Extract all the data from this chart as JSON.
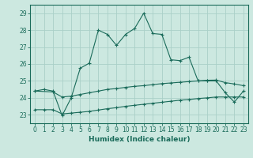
{
  "xlabel": "Humidex (Indice chaleur)",
  "background_color": "#cce8e0",
  "grid_color": "#aad0c8",
  "line_color": "#1a6b5a",
  "xlim": [
    -0.5,
    23.5
  ],
  "ylim": [
    22.5,
    29.5
  ],
  "x_ticks": [
    0,
    1,
    2,
    3,
    4,
    5,
    6,
    7,
    8,
    9,
    10,
    11,
    12,
    13,
    14,
    15,
    16,
    17,
    18,
    19,
    20,
    21,
    22,
    23
  ],
  "y_ticks": [
    23,
    24,
    25,
    26,
    27,
    28,
    29
  ],
  "series1_x": [
    0,
    1,
    2,
    3,
    4,
    5,
    6,
    7,
    8,
    9,
    10,
    11,
    12,
    13,
    14,
    15,
    16,
    17,
    18,
    19,
    20,
    21,
    22,
    23
  ],
  "series1_y": [
    24.4,
    24.5,
    24.4,
    22.95,
    24.0,
    25.75,
    26.05,
    28.0,
    27.75,
    27.1,
    27.75,
    28.1,
    29.0,
    27.8,
    27.75,
    26.25,
    26.2,
    26.4,
    25.0,
    25.0,
    25.0,
    24.3,
    23.75,
    24.4
  ],
  "series2_x": [
    0,
    2,
    3,
    4,
    5,
    6,
    7,
    8,
    9,
    10,
    11,
    12,
    13,
    14,
    15,
    16,
    17,
    18,
    19,
    20,
    21,
    22,
    23
  ],
  "series2_y": [
    24.4,
    24.35,
    24.05,
    24.1,
    24.2,
    24.3,
    24.4,
    24.5,
    24.55,
    24.62,
    24.68,
    24.72,
    24.78,
    24.84,
    24.88,
    24.92,
    24.96,
    25.0,
    25.04,
    25.05,
    24.9,
    24.82,
    24.72
  ],
  "series3_x": [
    0,
    1,
    2,
    3,
    4,
    5,
    6,
    7,
    8,
    9,
    10,
    11,
    12,
    13,
    14,
    15,
    16,
    17,
    18,
    19,
    20,
    21,
    22,
    23
  ],
  "series3_y": [
    23.3,
    23.3,
    23.3,
    23.05,
    23.1,
    23.15,
    23.2,
    23.28,
    23.36,
    23.42,
    23.5,
    23.56,
    23.62,
    23.68,
    23.74,
    23.8,
    23.86,
    23.9,
    23.96,
    24.0,
    24.05,
    24.05,
    24.05,
    24.05
  ]
}
